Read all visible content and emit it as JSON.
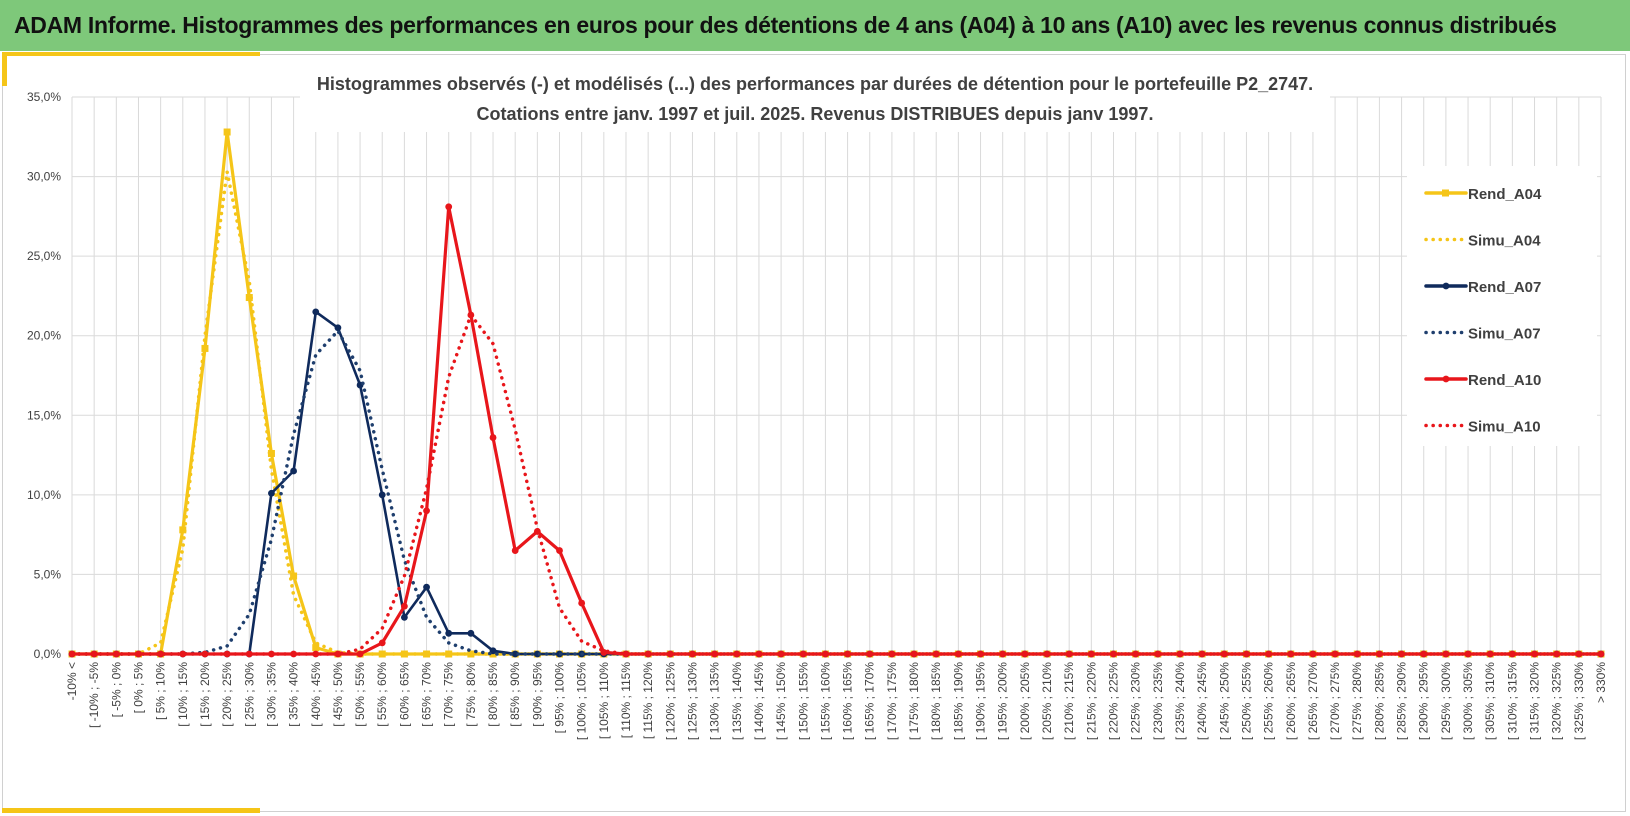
{
  "banner": {
    "title": "ADAM Informe. Histogrammes des performances en euros pour des détentions de 4 ans (A04) à 10 ans (A10) avec les revenus connus distribués"
  },
  "chart_data": {
    "type": "line",
    "title": "Histogrammes observés (-) et modélisés (...) des performances par durées de détention pour  le portefeuille P2_2747.",
    "subtitle": "Cotations entre janv. 1997 et juil. 2025. Revenus DISTRIBUES depuis janv 1997.",
    "xlabel": "",
    "ylabel": "",
    "ylim": [
      0,
      35
    ],
    "yticks": [
      "0,0%",
      "5,0%",
      "10,0%",
      "15,0%",
      "20,0%",
      "25,0%",
      "30,0%",
      "35,0%"
    ],
    "grid": true,
    "legend_position": "right",
    "categories": [
      "-10% <",
      "[ -10% ; -5%",
      "[ -5% ; 0%",
      "[ 0% ; 5%",
      "[ 5% ; 10%",
      "[ 10% ; 15%",
      "[ 15% ; 20%",
      "[ 20% ; 25%",
      "[ 25% ; 30%",
      "[ 30% ; 35%",
      "[ 35% ; 40%",
      "[ 40% ; 45%",
      "[ 45% ; 50%",
      "[ 50% ; 55%",
      "[ 55% ; 60%",
      "[ 60% ; 65%",
      "[ 65% ; 70%",
      "[ 70% ; 75%",
      "[ 75% ; 80%",
      "[ 80% ; 85%",
      "[ 85% ; 90%",
      "[ 90% ; 95%",
      "[ 95% ; 100%",
      "[ 100% ; 105%",
      "[ 105% ; 110%",
      "[ 110% ; 115%",
      "[ 115% ; 120%",
      "[ 120% ; 125%",
      "[ 125% ; 130%",
      "[ 130% ; 135%",
      "[ 135% ; 140%",
      "[ 140% ; 145%",
      "[ 145% ; 150%",
      "[ 150% ; 155%",
      "[ 155% ; 160%",
      "[ 160% ; 165%",
      "[ 165% ; 170%",
      "[ 170% ; 175%",
      "[ 175% ; 180%",
      "[ 180% ; 185%",
      "[ 185% ; 190%",
      "[ 190% ; 195%",
      "[ 195% ; 200%",
      "[ 200% ; 205%",
      "[ 205% ; 210%",
      "[ 210% ; 215%",
      "[ 215% ; 220%",
      "[ 220% ; 225%",
      "[ 225% ; 230%",
      "[ 230% ; 235%",
      "[ 235% ; 240%",
      "[ 240% ; 245%",
      "[ 245% ; 250%",
      "[ 250% ; 255%",
      "[ 255% ; 260%",
      "[ 260% ; 265%",
      "[ 265% ; 270%",
      "[ 270% ; 275%",
      "[ 275% ; 280%",
      "[ 280% ; 285%",
      "[ 285% ; 290%",
      "[ 290% ; 295%",
      "[ 295% ; 300%",
      "[ 300% ; 305%",
      "[ 305% ; 310%",
      "[ 310% ; 315%",
      "[ 315% ; 320%",
      "[ 320% ; 325%",
      "[ 325% ; 330%",
      "> 330%"
    ],
    "series": [
      {
        "name": "Rend_A04",
        "color": "#f5c518",
        "style": "solid",
        "marker": "square",
        "values": [
          0,
          0,
          0,
          0,
          0,
          7.8,
          19.2,
          32.8,
          22.4,
          12.6,
          4.9,
          0.4,
          0,
          0,
          0,
          0,
          0,
          0,
          0,
          0,
          0,
          0,
          0,
          0,
          0,
          0,
          0,
          0,
          0,
          0,
          0,
          0,
          0,
          0,
          0,
          0,
          0,
          0,
          0,
          0,
          0,
          0,
          0,
          0,
          0,
          0,
          0,
          0,
          0,
          0,
          0,
          0,
          0,
          0,
          0,
          0,
          0,
          0,
          0,
          0,
          0,
          0,
          0,
          0,
          0,
          0,
          0,
          0,
          0,
          0
        ]
      },
      {
        "name": "Simu_A04",
        "color": "#f5c518",
        "style": "dotted",
        "marker": "none",
        "values": [
          0,
          0,
          0,
          0,
          0.7,
          6.6,
          20.0,
          30.3,
          23.4,
          11.6,
          3.7,
          0.7,
          0.1,
          0,
          0,
          0,
          0,
          0,
          0,
          0,
          0,
          0,
          0,
          0,
          0,
          0,
          0,
          0,
          0,
          0,
          0,
          0,
          0,
          0,
          0,
          0,
          0,
          0,
          0,
          0,
          0,
          0,
          0,
          0,
          0,
          0,
          0,
          0,
          0,
          0,
          0,
          0,
          0,
          0,
          0,
          0,
          0,
          0,
          0,
          0,
          0,
          0,
          0,
          0,
          0,
          0,
          0,
          0,
          0,
          0
        ]
      },
      {
        "name": "Rend_A07",
        "color": "#0f2a5c",
        "style": "solid",
        "marker": "circle",
        "values": [
          0,
          0,
          0,
          0,
          0,
          0,
          0,
          0,
          0,
          10.1,
          11.5,
          21.5,
          20.5,
          16.9,
          10.0,
          2.3,
          4.2,
          1.3,
          1.3,
          0.2,
          0,
          0,
          0,
          0,
          0,
          0,
          0,
          0,
          0,
          0,
          0,
          0,
          0,
          0,
          0,
          0,
          0,
          0,
          0,
          0,
          0,
          0,
          0,
          0,
          0,
          0,
          0,
          0,
          0,
          0,
          0,
          0,
          0,
          0,
          0,
          0,
          0,
          0,
          0,
          0,
          0,
          0,
          0,
          0,
          0,
          0,
          0,
          0,
          0,
          0
        ]
      },
      {
        "name": "Simu_A07",
        "color": "#1f3f6e",
        "style": "dotted",
        "marker": "none",
        "values": [
          0,
          0,
          0,
          0,
          0,
          0,
          0.1,
          0.5,
          2.5,
          7.2,
          13.8,
          18.8,
          20.3,
          17.8,
          11.6,
          5.9,
          2.3,
          0.7,
          0.2,
          0,
          0,
          0,
          0,
          0,
          0,
          0,
          0,
          0,
          0,
          0,
          0,
          0,
          0,
          0,
          0,
          0,
          0,
          0,
          0,
          0,
          0,
          0,
          0,
          0,
          0,
          0,
          0,
          0,
          0,
          0,
          0,
          0,
          0,
          0,
          0,
          0,
          0,
          0,
          0,
          0,
          0,
          0,
          0,
          0,
          0,
          0,
          0,
          0,
          0,
          0
        ]
      },
      {
        "name": "Rend_A10",
        "color": "#e8161b",
        "style": "solid",
        "marker": "circle",
        "values": [
          0,
          0,
          0,
          0,
          0,
          0,
          0,
          0,
          0,
          0,
          0,
          0,
          0,
          0,
          0.7,
          3.0,
          9.0,
          28.1,
          21.3,
          13.6,
          6.5,
          7.7,
          6.5,
          3.2,
          0.1,
          0,
          0,
          0,
          0,
          0,
          0,
          0,
          0,
          0,
          0,
          0,
          0,
          0,
          0,
          0,
          0,
          0,
          0,
          0,
          0,
          0,
          0,
          0,
          0,
          0,
          0,
          0,
          0,
          0,
          0,
          0,
          0,
          0,
          0,
          0,
          0,
          0,
          0,
          0,
          0,
          0,
          0,
          0,
          0,
          0
        ]
      },
      {
        "name": "Simu_A10",
        "color": "#e8161b",
        "style": "dotted",
        "marker": "none",
        "values": [
          0,
          0,
          0,
          0,
          0,
          0,
          0,
          0,
          0,
          0,
          0,
          0,
          0,
          0.3,
          1.6,
          4.9,
          10.4,
          17.4,
          21.3,
          19.5,
          14.1,
          7.9,
          2.9,
          0.8,
          0.2,
          0,
          0,
          0,
          0,
          0,
          0,
          0,
          0,
          0,
          0,
          0,
          0,
          0,
          0,
          0,
          0,
          0,
          0,
          0,
          0,
          0,
          0,
          0,
          0,
          0,
          0,
          0,
          0,
          0,
          0,
          0,
          0,
          0,
          0,
          0,
          0,
          0,
          0,
          0,
          0,
          0,
          0,
          0,
          0,
          0
        ]
      }
    ]
  }
}
